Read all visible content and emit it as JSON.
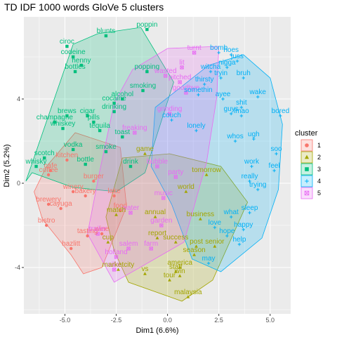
{
  "chart_data": {
    "type": "scatter",
    "title": "TD IDF 1000 words GloVe 5 clusters",
    "xlabel": "Dim1 (6.6%)",
    "ylabel": "Dim2 (5.2%)",
    "xlim": [
      -7.0,
      6.0
    ],
    "ylim": [
      -6.2,
      7.9
    ],
    "xticks": [
      -5.0,
      -2.5,
      0.0,
      2.5,
      5.0
    ],
    "yticks": [
      -4,
      0,
      4
    ],
    "xtick_labels": [
      "-5.0",
      "-2.5",
      "0.0",
      "2.5",
      "5.0"
    ],
    "ytick_labels": [
      "-4",
      "0",
      "4"
    ],
    "grid": true,
    "legend": {
      "title": "cluster",
      "placement": "right",
      "entries": [
        {
          "label": "1",
          "color": "#F8766D",
          "shape": "circle"
        },
        {
          "label": "2",
          "color": "#A3A500",
          "shape": "triangle"
        },
        {
          "label": "3",
          "color": "#00BF7D",
          "shape": "square"
        },
        {
          "label": "4",
          "color": "#00B0F6",
          "shape": "plus"
        },
        {
          "label": "5",
          "color": "#E76BF3",
          "shape": "boxcross"
        }
      ]
    },
    "hulls": [
      {
        "cluster": "1",
        "points": [
          [
            -6.1,
            -1.7
          ],
          [
            -4.7,
            -3.4
          ],
          [
            -4.1,
            -4.3
          ],
          [
            -3.2,
            -4.0
          ],
          [
            -2.0,
            -1.1
          ],
          [
            -2.3,
            1.7
          ],
          [
            -4.5,
            2.4
          ],
          [
            -5.9,
            0.8
          ],
          [
            -6.5,
            -0.4
          ]
        ]
      },
      {
        "cluster": "2",
        "points": [
          [
            -2.2,
            1.2
          ],
          [
            0.1,
            1.4
          ],
          [
            2.6,
            0.8
          ],
          [
            3.9,
            -0.9
          ],
          [
            2.2,
            -4.6
          ],
          [
            0.7,
            -5.6
          ],
          [
            -1.9,
            -4.7
          ],
          [
            -2.6,
            -3.2
          ],
          [
            -3.0,
            -1.6
          ]
        ]
      },
      {
        "cluster": "3",
        "points": [
          [
            -6.6,
            0.5
          ],
          [
            -6.9,
            0.1
          ],
          [
            -4.6,
            6.6
          ],
          [
            -3.4,
            7.1
          ],
          [
            -1.3,
            7.4
          ],
          [
            0.3,
            4.8
          ],
          [
            -1.1,
            0.5
          ],
          [
            -2.5,
            -0.4
          ],
          [
            -4.6,
            -0.2
          ]
        ]
      },
      {
        "cluster": "4",
        "points": [
          [
            -0.6,
            3.6
          ],
          [
            2.0,
            5.6
          ],
          [
            3.7,
            6.1
          ],
          [
            5.0,
            5.0
          ],
          [
            5.6,
            2.8
          ],
          [
            5.4,
            -0.3
          ],
          [
            4.6,
            -2.6
          ],
          [
            2.6,
            -4.2
          ],
          [
            1.2,
            -3.6
          ],
          [
            0.2,
            -1.0
          ],
          [
            -0.8,
            0.8
          ]
        ]
      },
      {
        "cluster": "5",
        "points": [
          [
            0.0,
            6.4
          ],
          [
            2.5,
            6.5
          ],
          [
            2.4,
            4.1
          ],
          [
            1.9,
            1.0
          ],
          [
            0.8,
            -2.8
          ],
          [
            -2.6,
            -4.7
          ],
          [
            -3.9,
            -2.4
          ],
          [
            -3.3,
            0.6
          ],
          [
            -2.6,
            3.8
          ],
          [
            -1.7,
            5.4
          ]
        ]
      }
    ],
    "points": [
      {
        "x": -3.0,
        "y": 7.0,
        "label": "blunts",
        "cluster": "3"
      },
      {
        "x": -1.0,
        "y": 7.3,
        "label": "poppin",
        "cluster": "3"
      },
      {
        "x": -4.9,
        "y": 6.5,
        "label": "ciroc",
        "cluster": "3"
      },
      {
        "x": -4.6,
        "y": 6.0,
        "label": "codeine",
        "cluster": "3"
      },
      {
        "x": -4.2,
        "y": 5.6,
        "label": "henny",
        "cluster": "3"
      },
      {
        "x": -4.5,
        "y": 5.3,
        "label": "bottles",
        "cluster": "3"
      },
      {
        "x": -1.0,
        "y": 5.3,
        "label": "popping",
        "cluster": "3"
      },
      {
        "x": -1.2,
        "y": 4.4,
        "label": "smoking",
        "cluster": "3"
      },
      {
        "x": -2.2,
        "y": 4.0,
        "label": "alcohol",
        "cluster": "3"
      },
      {
        "x": -2.6,
        "y": 3.8,
        "label": "cocaine",
        "cluster": "3"
      },
      {
        "x": -2.6,
        "y": 3.4,
        "label": "drinking",
        "cluster": "3"
      },
      {
        "x": -4.9,
        "y": 3.2,
        "label": "brews",
        "cluster": "3"
      },
      {
        "x": -3.9,
        "y": 3.2,
        "label": "cigar",
        "cluster": "3"
      },
      {
        "x": -5.5,
        "y": 2.9,
        "label": "champagne",
        "cluster": "3"
      },
      {
        "x": -3.6,
        "y": 2.9,
        "label": "pills",
        "cluster": "3"
      },
      {
        "x": -5.1,
        "y": 2.6,
        "label": "whiskey",
        "cluster": "3"
      },
      {
        "x": -3.3,
        "y": 2.5,
        "label": "tequila",
        "cluster": "3"
      },
      {
        "x": -2.2,
        "y": 2.2,
        "label": "toast",
        "cluster": "3"
      },
      {
        "x": -4.6,
        "y": 1.6,
        "label": "vodka",
        "cluster": "3"
      },
      {
        "x": -3.0,
        "y": 1.5,
        "label": "smoke",
        "cluster": "3"
      },
      {
        "x": -6.0,
        "y": 1.2,
        "label": "scotch",
        "cluster": "3"
      },
      {
        "x": -6.4,
        "y": 0.8,
        "label": "whisky",
        "cluster": "3"
      },
      {
        "x": -4.0,
        "y": 0.9,
        "label": "bottle",
        "cluster": "3"
      },
      {
        "x": -1.8,
        "y": 0.8,
        "label": "drink",
        "cluster": "3"
      },
      {
        "x": -5.8,
        "y": -1.0,
        "label": "brewery",
        "cluster": "1"
      },
      {
        "x": -5.2,
        "y": -1.2,
        "label": "cayuga",
        "cluster": "1"
      },
      {
        "x": -5.9,
        "y": -2.0,
        "label": "bistro",
        "cluster": "1"
      },
      {
        "x": -4.9,
        "y": 1.1,
        "label": "kitchen",
        "cluster": "1"
      },
      {
        "x": -5.7,
        "y": 0.6,
        "label": "cafe",
        "cluster": "1"
      },
      {
        "x": -5.8,
        "y": 0.4,
        "label": "coffee",
        "cluster": "1"
      },
      {
        "x": -4.6,
        "y": -0.4,
        "label": "winery",
        "cluster": "1"
      },
      {
        "x": -4.0,
        "y": -0.6,
        "label": "bakery",
        "cluster": "1"
      },
      {
        "x": -3.6,
        "y": 0.1,
        "label": "burger",
        "cluster": "1"
      },
      {
        "x": -4.7,
        "y": -3.1,
        "label": "hazlitt",
        "cluster": "1"
      },
      {
        "x": -3.2,
        "y": -2.4,
        "label": "wine",
        "cluster": "1"
      },
      {
        "x": -2.6,
        "y": -0.6,
        "label": "lake",
        "cluster": "1"
      },
      {
        "x": -2.3,
        "y": -1.3,
        "label": "food",
        "cluster": "1"
      },
      {
        "x": -3.9,
        "y": -2.5,
        "label": "tasting",
        "cluster": "1"
      },
      {
        "x": -2.6,
        "y": -4.1,
        "label": "villa",
        "cluster": "5"
      },
      {
        "x": -2.5,
        "y": -3.5,
        "label": "holland",
        "cluster": "5"
      },
      {
        "x": -3.4,
        "y": -2.4,
        "label": "trailer",
        "cluster": "5"
      },
      {
        "x": -1.9,
        "y": -3.1,
        "label": "salem",
        "cluster": "5"
      },
      {
        "x": -1.8,
        "y": -1.4,
        "label": "water",
        "cluster": "5"
      },
      {
        "x": -0.8,
        "y": -3.1,
        "label": "farm",
        "cluster": "5"
      },
      {
        "x": -0.3,
        "y": -2.0,
        "label": "garden",
        "cluster": "5"
      },
      {
        "x": 1.3,
        "y": 6.2,
        "label": "turnt",
        "cluster": "5"
      },
      {
        "x": 0.7,
        "y": 5.5,
        "label": "lit",
        "cluster": "5"
      },
      {
        "x": -0.1,
        "y": 5.1,
        "label": "wasted",
        "cluster": "5"
      },
      {
        "x": 0.6,
        "y": 4.8,
        "label": "pitched",
        "cluster": "5"
      },
      {
        "x": 0.9,
        "y": 4.3,
        "label": "goodbye",
        "cluster": "5"
      },
      {
        "x": 0.1,
        "y": 3.3,
        "label": "grinding",
        "cluster": "5"
      },
      {
        "x": -1.6,
        "y": 2.4,
        "label": "freaking",
        "cluster": "5"
      },
      {
        "x": -0.5,
        "y": 0.8,
        "label": "bubble",
        "cluster": "5"
      },
      {
        "x": 0.4,
        "y": 0.3,
        "label": "party",
        "cluster": "5"
      },
      {
        "x": -0.2,
        "y": -0.7,
        "label": "music",
        "cluster": "5"
      },
      {
        "x": -2.4,
        "y": -4.1,
        "label": "marketcity",
        "cluster": "2"
      },
      {
        "x": -1.1,
        "y": -4.3,
        "label": "vs",
        "cluster": "2"
      },
      {
        "x": 0.6,
        "y": -4.0,
        "label": "america",
        "cluster": "2"
      },
      {
        "x": 0.1,
        "y": -4.6,
        "label": "tour",
        "cluster": "2"
      },
      {
        "x": 0.4,
        "y": -4.2,
        "label": "staff",
        "cluster": "2"
      },
      {
        "x": 0.6,
        "y": -4.4,
        "label": "win",
        "cluster": "2"
      },
      {
        "x": 1.0,
        "y": -5.4,
        "label": "malaysia",
        "cluster": "2"
      },
      {
        "x": -2.9,
        "y": -2.8,
        "label": "cup",
        "cluster": "2"
      },
      {
        "x": -2.5,
        "y": -1.5,
        "label": "match",
        "cluster": "2"
      },
      {
        "x": -0.5,
        "y": -2.6,
        "label": "report",
        "cluster": "2"
      },
      {
        "x": 1.4,
        "y": -3.0,
        "label": "post",
        "cluster": "2"
      },
      {
        "x": 1.3,
        "y": -3.4,
        "label": "season",
        "cluster": "2"
      },
      {
        "x": 2.3,
        "y": -3.0,
        "label": "senior",
        "cluster": "2"
      },
      {
        "x": 0.4,
        "y": -2.8,
        "label": "success",
        "cluster": "2"
      },
      {
        "x": 1.6,
        "y": -1.7,
        "label": "business",
        "cluster": "2"
      },
      {
        "x": -0.6,
        "y": -1.6,
        "label": "annual",
        "cluster": "2"
      },
      {
        "x": 0.9,
        "y": -0.4,
        "label": "world",
        "cluster": "2"
      },
      {
        "x": 1.9,
        "y": 0.4,
        "label": "tomorrow",
        "cluster": "2"
      },
      {
        "x": -1.1,
        "y": 1.4,
        "label": "game",
        "cluster": "2"
      },
      {
        "x": 2.5,
        "y": 6.2,
        "label": "bomb",
        "cluster": "4"
      },
      {
        "x": 3.1,
        "y": 6.1,
        "label": "hoes",
        "cluster": "4"
      },
      {
        "x": 3.4,
        "y": 5.8,
        "label": "juss",
        "cluster": "4"
      },
      {
        "x": 2.9,
        "y": 5.5,
        "label": "nigga",
        "cluster": "4"
      },
      {
        "x": 2.1,
        "y": 5.3,
        "label": "witcha",
        "cluster": "4"
      },
      {
        "x": 2.6,
        "y": 5.0,
        "label": "tryin",
        "cluster": "4"
      },
      {
        "x": 3.7,
        "y": 5.0,
        "label": "bruh",
        "cluster": "4"
      },
      {
        "x": 1.8,
        "y": 4.7,
        "label": "thirsty",
        "cluster": "4"
      },
      {
        "x": 1.5,
        "y": 4.2,
        "label": "somethin",
        "cluster": "4"
      },
      {
        "x": 2.7,
        "y": 4.0,
        "label": "ayee",
        "cluster": "4"
      },
      {
        "x": 4.4,
        "y": 4.1,
        "label": "wake",
        "cluster": "4"
      },
      {
        "x": 3.6,
        "y": 3.6,
        "label": "shit",
        "cluster": "4"
      },
      {
        "x": 5.5,
        "y": 3.2,
        "label": "bored",
        "cluster": "4"
      },
      {
        "x": 3.1,
        "y": 3.3,
        "label": "guys",
        "cluster": "4"
      },
      {
        "x": 3.6,
        "y": 3.2,
        "label": "lmao",
        "cluster": "4"
      },
      {
        "x": 0.2,
        "y": 3.0,
        "label": "couch",
        "cluster": "4"
      },
      {
        "x": 1.4,
        "y": 2.5,
        "label": "lonely",
        "cluster": "4"
      },
      {
        "x": 3.3,
        "y": 2.0,
        "label": "whos",
        "cluster": "4"
      },
      {
        "x": 4.2,
        "y": 2.1,
        "label": "ugh",
        "cluster": "4"
      },
      {
        "x": 5.3,
        "y": 1.4,
        "label": "soo",
        "cluster": "4"
      },
      {
        "x": 4.1,
        "y": 0.8,
        "label": "work",
        "cluster": "4"
      },
      {
        "x": 5.2,
        "y": 0.6,
        "label": "feel",
        "cluster": "4"
      },
      {
        "x": 4.0,
        "y": 0.1,
        "label": "really",
        "cluster": "4"
      },
      {
        "x": 4.4,
        "y": -0.3,
        "label": "trying",
        "cluster": "4"
      },
      {
        "x": 4.0,
        "y": -1.4,
        "label": "sleep",
        "cluster": "4"
      },
      {
        "x": 3.1,
        "y": -1.6,
        "label": "what",
        "cluster": "4"
      },
      {
        "x": 3.7,
        "y": -2.2,
        "label": "happy",
        "cluster": "4"
      },
      {
        "x": 2.9,
        "y": -2.5,
        "label": "hope",
        "cluster": "4"
      },
      {
        "x": 2.3,
        "y": -2.1,
        "label": "love",
        "cluster": "4"
      },
      {
        "x": 3.5,
        "y": -2.9,
        "label": "help",
        "cluster": "4"
      },
      {
        "x": 2.0,
        "y": -3.8,
        "label": "may",
        "cluster": "4"
      }
    ]
  }
}
